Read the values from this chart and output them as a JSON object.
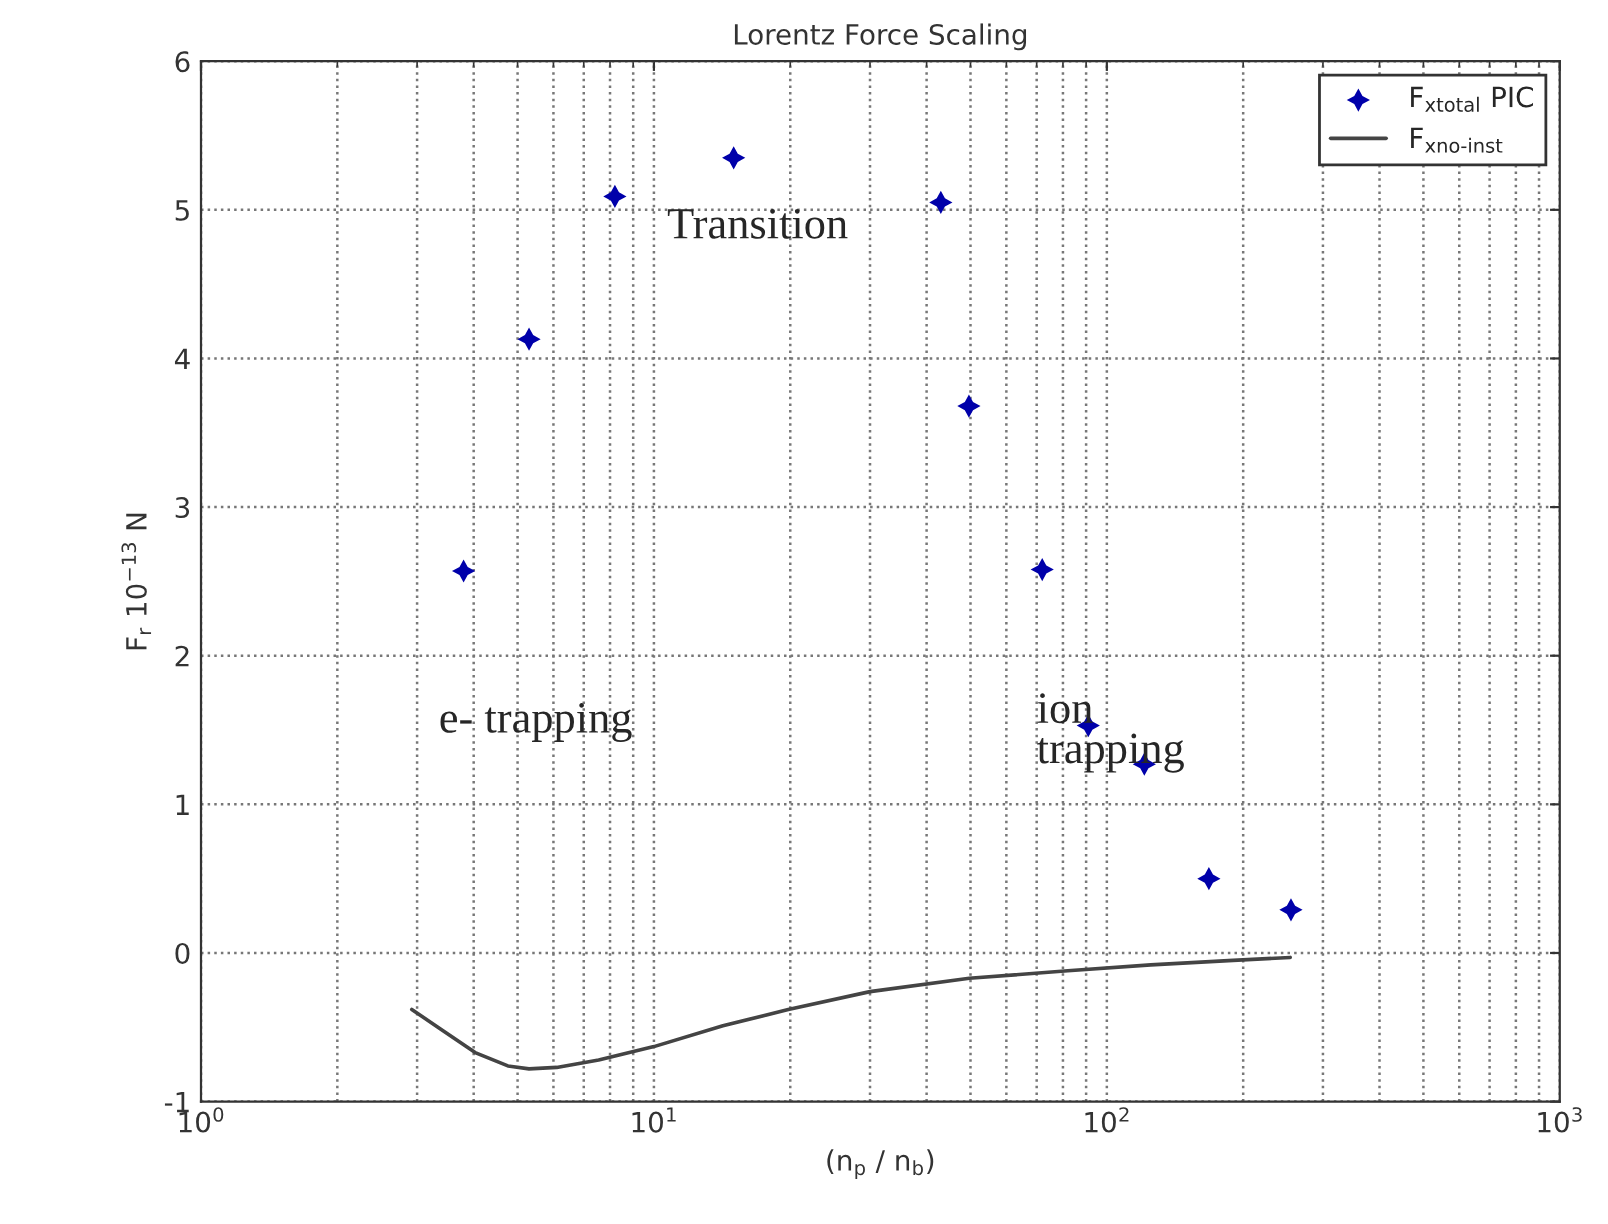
{
  "chart_data": {
    "type": "scatter",
    "title": "Lorentz Force Scaling",
    "xlabel": "(n$_{p}$ / n$_{b}$)",
    "ylabel": "F$_{r}$ 10$^{−13}$ N",
    "log": "x",
    "xlim": [
      1,
      1000
    ],
    "ylim": [
      -1,
      6
    ],
    "xticks": [
      {
        "value": 1,
        "label": "10$^{0}$"
      },
      {
        "value": 10,
        "label": "10$^{1}$"
      },
      {
        "value": 100,
        "label": "10$^{2}$"
      },
      {
        "value": 1000,
        "label": "10$^{3}$"
      }
    ],
    "yticks": [
      -1,
      0,
      1,
      2,
      3,
      4,
      5,
      6
    ],
    "grid": true,
    "legend": "top right",
    "series": [
      {
        "name": "F$_{xtotal}$ PIC",
        "color": "#0000aa",
        "marker": "star",
        "x": [
          3.8,
          5.3,
          8.2,
          15.0,
          43,
          49.6,
          72,
          91,
          121,
          168,
          255
        ],
        "values": [
          2.57,
          4.13,
          5.09,
          5.35,
          5.05,
          3.68,
          2.58,
          1.53,
          1.27,
          0.5,
          0.29
        ]
      },
      {
        "name": "F$_{xno-inst}$",
        "type": "line",
        "color": "#444444",
        "marker": "none",
        "line_style": "solid",
        "x": [
          2.92,
          3.41,
          4.03,
          4.76,
          5.3,
          6.1,
          7.55,
          10,
          14.2,
          19.8,
          30,
          49.7,
          82,
          125,
          190,
          254
        ],
        "values": [
          -0.38,
          -0.52,
          -0.67,
          -0.76,
          -0.78,
          -0.77,
          -0.72,
          -0.63,
          -0.49,
          -0.38,
          -0.26,
          -0.17,
          -0.12,
          -0.08,
          -0.05,
          -0.03
        ]
      }
    ],
    "annotations": [
      "Transition",
      "e- trapping",
      "ion\ntrapping"
    ]
  }
}
